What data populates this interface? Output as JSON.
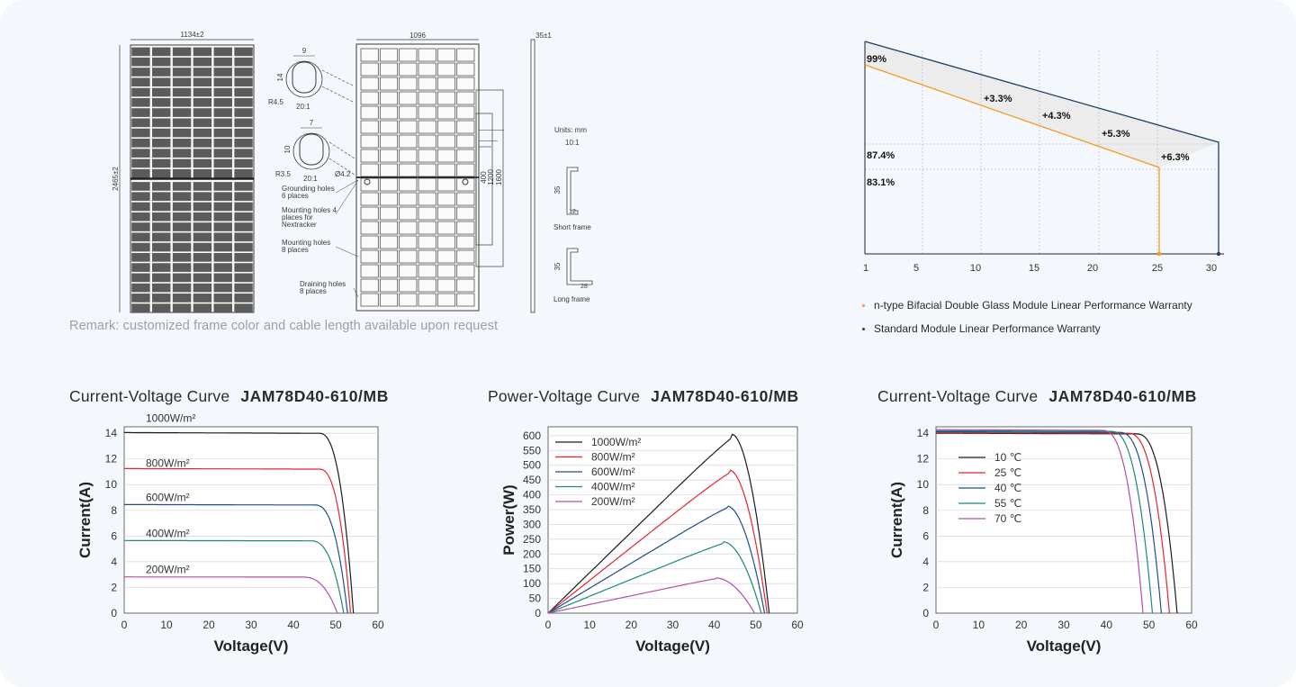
{
  "drawing": {
    "width_label": "1134±2",
    "length_label": "2465±2",
    "frame_width_label": "1096",
    "thickness_label": "35±1",
    "hole1": {
      "w": "9",
      "h": "14",
      "r": "R4.5",
      "scale": "20:1"
    },
    "hole2": {
      "w": "7",
      "h": "10",
      "r": "R3.5",
      "dia": "Ø4.2",
      "scale": "20:1"
    },
    "dims": [
      "400",
      "1200",
      "1600"
    ],
    "callouts": [
      "Grounding holes\n6 places",
      "Mounting holes 4\nplaces for\nNextracker",
      "Mounting holes\n8 places",
      "Draining holes\n8 places"
    ],
    "units": "Units: mm",
    "units_scale": "10:1",
    "short_frame": {
      "label": "Short frame",
      "h": "35",
      "w": "12"
    },
    "long_frame": {
      "label": "Long frame",
      "h": "35",
      "w": "28"
    }
  },
  "remark": "Remark: customized frame color and cable length available upon request",
  "warranty": {
    "legend": [
      {
        "label": "n-type Bifacial Double Glass Module Linear Performance Warranty",
        "color": "#f39c1e"
      },
      {
        "label": "Standard Module Linear Performance Warranty",
        "color": "#1e3f66"
      }
    ]
  },
  "chart_titles": [
    {
      "name": "Current-Voltage Curve",
      "model": "JAM78D40-610/MB"
    },
    {
      "name": "Power-Voltage Curve",
      "model": "JAM78D40-610/MB"
    },
    {
      "name": "Current-Voltage Curve",
      "model": "JAM78D40-610/MB"
    }
  ],
  "chart_data": [
    {
      "type": "line",
      "title": "",
      "xticks": [
        "1",
        "5",
        "10",
        "15",
        "20",
        "25",
        "30"
      ],
      "x_range": [
        1,
        30
      ],
      "grid": true,
      "series": [
        {
          "name": "n-type Bifacial Double Glass Module Linear Performance Warranty",
          "color": "#f39c1e",
          "x": [
            1,
            25,
            25
          ],
          "y": [
            99,
            87.4,
            0
          ]
        },
        {
          "name": "Standard Module Linear Performance Warranty",
          "color": "#1e3f66",
          "x": [
            0,
            30,
            30
          ],
          "y": [
            100,
            83.1,
            0
          ]
        }
      ],
      "annotations": [
        "99%",
        "+3.3%",
        "+4.3%",
        "+5.3%",
        "+6.3%",
        "87.4%",
        "83.1%"
      ]
    },
    {
      "type": "line",
      "title": "Current-Voltage Curve JAM78D40-610/MB",
      "xlabel": "Voltage(V)",
      "ylabel": "Current(A)",
      "xlim": [
        0,
        60
      ],
      "ylim": [
        0,
        14.5
      ],
      "xticks": [
        "0",
        "10",
        "20",
        "30",
        "40",
        "50",
        "60"
      ],
      "yticks": [
        "0",
        "2",
        "4",
        "6",
        "8",
        "10",
        "12",
        "14"
      ],
      "grid": true,
      "series": [
        {
          "name": "1000W/m²",
          "color": "#1c1c1c",
          "isc": 14.05,
          "voc": 54.2,
          "knee": 46
        },
        {
          "name": "800W/m²",
          "color": "#e3262e",
          "isc": 11.25,
          "voc": 53.5,
          "knee": 46
        },
        {
          "name": "600W/m²",
          "color": "#1f4e8f",
          "isc": 8.45,
          "voc": 52.8,
          "knee": 45
        },
        {
          "name": "400W/m²",
          "color": "#19887a",
          "isc": 5.65,
          "voc": 51.9,
          "knee": 44
        },
        {
          "name": "200W/m²",
          "color": "#b04fa6",
          "isc": 2.82,
          "voc": 50.4,
          "knee": 42
        }
      ]
    },
    {
      "type": "line",
      "title": "Power-Voltage Curve JAM78D40-610/MB",
      "xlabel": "Voltage(V)",
      "ylabel": "Power(W)",
      "xlim": [
        0,
        60
      ],
      "ylim": [
        0,
        630
      ],
      "xticks": [
        "0",
        "10",
        "20",
        "30",
        "40",
        "50",
        "60"
      ],
      "yticks": [
        "0",
        "50",
        "100",
        "150",
        "200",
        "250",
        "300",
        "350",
        "400",
        "450",
        "500",
        "550",
        "600"
      ],
      "grid": true,
      "series": [
        {
          "name": "1000W/m²",
          "color": "#1c1c1c",
          "vmp": 44.2,
          "pmax": 605,
          "voc": 53.2
        },
        {
          "name": "800W/m²",
          "color": "#e3262e",
          "vmp": 43.6,
          "pmax": 484,
          "voc": 52.7
        },
        {
          "name": "600W/m²",
          "color": "#1f4e8f",
          "vmp": 43.0,
          "pmax": 363,
          "voc": 52.1
        },
        {
          "name": "400W/m²",
          "color": "#19887a",
          "vmp": 42.2,
          "pmax": 241,
          "voc": 51.3
        },
        {
          "name": "200W/m²",
          "color": "#b04fa6",
          "vmp": 40.4,
          "pmax": 119,
          "voc": 49.7
        }
      ]
    },
    {
      "type": "line",
      "title": "Current-Voltage Curve JAM78D40-610/MB",
      "xlabel": "Voltage(V)",
      "ylabel": "Current(A)",
      "xlim": [
        0,
        60
      ],
      "ylim": [
        0,
        14.5
      ],
      "xticks": [
        "0",
        "10",
        "20",
        "30",
        "40",
        "50",
        "60"
      ],
      "yticks": [
        "0",
        "2",
        "4",
        "6",
        "8",
        "10",
        "12",
        "14"
      ],
      "grid": true,
      "series": [
        {
          "name": "10 ℃",
          "color": "#1c1c1c",
          "isc": 14.0,
          "voc": 56.6,
          "knee": 47
        },
        {
          "name": "25 ℃",
          "color": "#e3262e",
          "isc": 14.05,
          "voc": 54.8,
          "knee": 45
        },
        {
          "name": "40 ℃",
          "color": "#1f4e8f",
          "isc": 14.12,
          "voc": 52.9,
          "knee": 43
        },
        {
          "name": "55 ℃",
          "color": "#19887a",
          "isc": 14.2,
          "voc": 50.8,
          "knee": 41
        },
        {
          "name": "70 ℃",
          "color": "#b04fa6",
          "isc": 14.28,
          "voc": 48.6,
          "knee": 39
        }
      ]
    }
  ]
}
